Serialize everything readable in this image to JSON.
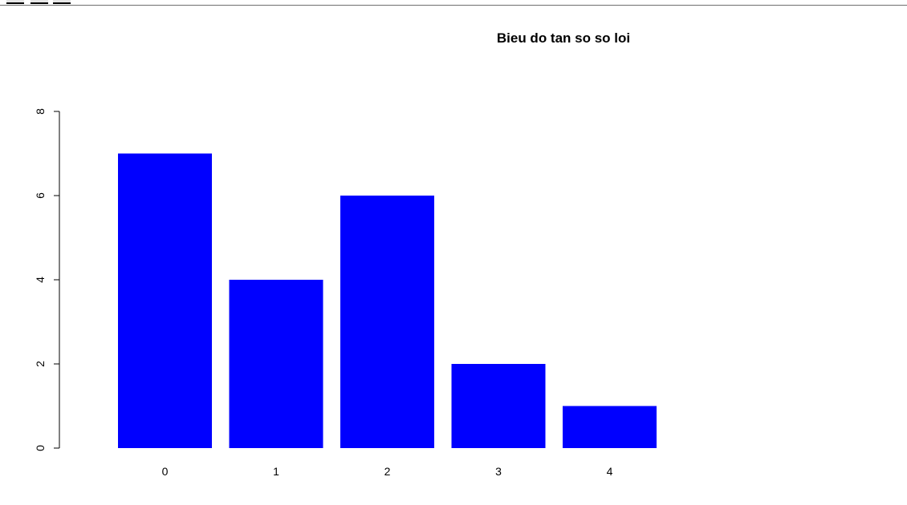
{
  "colors": {
    "bar": "#0000ff",
    "axis": "#000000",
    "background": "#ffffff"
  },
  "chart_data": {
    "type": "bar",
    "title": "Bieu do tan so so loi",
    "xlabel": "",
    "ylabel": "",
    "categories": [
      "0",
      "1",
      "2",
      "3",
      "4"
    ],
    "values": [
      7,
      4,
      6,
      2,
      1
    ],
    "ylim": [
      0,
      8
    ],
    "y_ticks": [
      0,
      2,
      4,
      6,
      8
    ],
    "grid": false,
    "legend": "none"
  }
}
